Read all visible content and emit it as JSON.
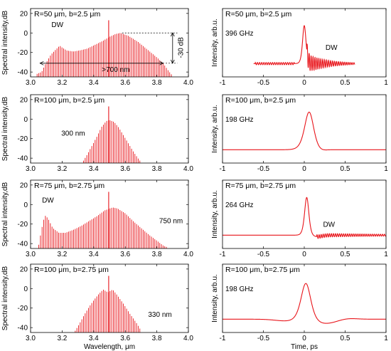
{
  "chart_data": [
    {
      "type": "bar",
      "panel": "left-1",
      "label": "R=50 μm, b=2.5 μm",
      "annotations": [
        "DW",
        "-30 dB",
        ">700 nm"
      ],
      "xlabel": "",
      "ylabel": "Spectral intensity,dB",
      "xlim": [
        3.0,
        4.0
      ],
      "ylim": [
        -45,
        25
      ],
      "xticks": [
        "3.0",
        "3.2",
        "3.4",
        "3.6",
        "3.8",
        "4.0"
      ],
      "yticks": [
        "20",
        "0",
        "-20",
        "-40"
      ],
      "pump": {
        "x": 3.495,
        "y": 13
      },
      "envelope": [
        [
          3.04,
          -42
        ],
        [
          3.07,
          -40
        ],
        [
          3.1,
          -30
        ],
        [
          3.13,
          -22
        ],
        [
          3.16,
          -17
        ],
        [
          3.185,
          -13
        ],
        [
          3.2,
          -15
        ],
        [
          3.23,
          -18
        ],
        [
          3.27,
          -19
        ],
        [
          3.31,
          -18
        ],
        [
          3.36,
          -16
        ],
        [
          3.41,
          -12
        ],
        [
          3.46,
          -8
        ],
        [
          3.5,
          -4
        ],
        [
          3.54,
          -1
        ],
        [
          3.57,
          0
        ],
        [
          3.62,
          -3
        ],
        [
          3.68,
          -9
        ],
        [
          3.74,
          -17
        ],
        [
          3.8,
          -25
        ],
        [
          3.84,
          -31
        ],
        [
          3.87,
          -38
        ],
        [
          3.9,
          -44
        ]
      ]
    },
    {
      "type": "bar",
      "panel": "left-2",
      "label": "R=100 μm, b=2.5 μm",
      "annotations": [
        "300 nm"
      ],
      "xlabel": "",
      "ylabel": "Spectral intensity,dB",
      "xlim": [
        3.0,
        4.0
      ],
      "ylim": [
        -45,
        25
      ],
      "xticks": [
        "3.0",
        "3.2",
        "3.4",
        "3.6",
        "3.8",
        "4.0"
      ],
      "yticks": [
        "20",
        "0",
        "-20",
        "-40"
      ],
      "pump": {
        "x": 3.495,
        "y": 13
      },
      "envelope": [
        [
          3.33,
          -44
        ],
        [
          3.36,
          -36
        ],
        [
          3.39,
          -27
        ],
        [
          3.42,
          -18
        ],
        [
          3.45,
          -8
        ],
        [
          3.48,
          -2
        ],
        [
          3.5,
          -1
        ],
        [
          3.53,
          -3
        ],
        [
          3.56,
          -9
        ],
        [
          3.59,
          -17
        ],
        [
          3.62,
          -25
        ],
        [
          3.65,
          -33
        ],
        [
          3.68,
          -40
        ],
        [
          3.7,
          -44
        ]
      ]
    },
    {
      "type": "bar",
      "panel": "left-3",
      "label": "R=75 μm, b=2.75 μm",
      "annotations": [
        "DW",
        "750 nm"
      ],
      "xlabel": "",
      "ylabel": "Spectral intensity,dB",
      "xlim": [
        3.0,
        4.0
      ],
      "ylim": [
        -45,
        25
      ],
      "xticks": [
        "3.0",
        "3.2",
        "3.4",
        "3.6",
        "3.8",
        "4.0"
      ],
      "yticks": [
        "20",
        "0",
        "-20",
        "-40"
      ],
      "pump": {
        "x": 3.495,
        "y": 13
      },
      "envelope": [
        [
          3.05,
          -43
        ],
        [
          3.07,
          -25
        ],
        [
          3.09,
          -11
        ],
        [
          3.11,
          -14
        ],
        [
          3.14,
          -24
        ],
        [
          3.18,
          -29
        ],
        [
          3.22,
          -29
        ],
        [
          3.27,
          -26
        ],
        [
          3.32,
          -22
        ],
        [
          3.37,
          -17
        ],
        [
          3.42,
          -12
        ],
        [
          3.47,
          -6
        ],
        [
          3.52,
          -3
        ],
        [
          3.55,
          -4
        ],
        [
          3.6,
          -9
        ],
        [
          3.65,
          -17
        ],
        [
          3.7,
          -24
        ],
        [
          3.75,
          -31
        ],
        [
          3.8,
          -37
        ],
        [
          3.84,
          -42
        ],
        [
          3.87,
          -44
        ]
      ]
    },
    {
      "type": "bar",
      "panel": "left-4",
      "label": "R=100 μm, b=2.75 μm",
      "annotations": [
        "330 nm"
      ],
      "xlabel": "Wavelength, μm",
      "ylabel": "Spectral intensity,dB",
      "xlim": [
        3.0,
        4.0
      ],
      "ylim": [
        -45,
        25
      ],
      "xticks": [
        "3.0",
        "3.2",
        "3.4",
        "3.6",
        "3.8",
        "4.0"
      ],
      "yticks": [
        "20",
        "0",
        "-20",
        "-40"
      ],
      "pump": {
        "x": 3.495,
        "y": 13
      },
      "envelope": [
        [
          3.28,
          -44
        ],
        [
          3.31,
          -36
        ],
        [
          3.34,
          -27
        ],
        [
          3.37,
          -19
        ],
        [
          3.4,
          -12
        ],
        [
          3.43,
          -6
        ],
        [
          3.46,
          -1
        ],
        [
          3.49,
          -4
        ],
        [
          3.52,
          -1
        ],
        [
          3.55,
          -7
        ],
        [
          3.59,
          -16
        ],
        [
          3.63,
          -26
        ],
        [
          3.67,
          -35
        ],
        [
          3.7,
          -43
        ]
      ]
    },
    {
      "type": "line",
      "panel": "right-1",
      "label": "R=50 μm, b=2.5 μm",
      "sublabel": "396 GHz",
      "annotations": [
        "DW"
      ],
      "xlabel": "",
      "ylabel": "Intensity, arb.u.",
      "xlim": [
        -1,
        1
      ],
      "xticks": [
        "-1",
        "-0.5",
        "0",
        "0.5",
        "1"
      ],
      "pulse": {
        "t0": 0.0,
        "width": 0.028,
        "peak": 1.0,
        "side_lobe": 0.0,
        "dw": true,
        "dw_amp": 0.25,
        "dw_freq": 42,
        "dw_start": 0.03,
        "dw_decay": 0.25,
        "trail_amp": 0.03,
        "trail_freq": 38,
        "trail_start": -0.6,
        "trail_end": -0.12
      }
    },
    {
      "type": "line",
      "panel": "right-2",
      "label": "R=100 μm, b=2.5 μm",
      "sublabel": "198 GHz",
      "annotations": [],
      "xlabel": "",
      "ylabel": "Intensity, arb.u.",
      "xlim": [
        -1,
        1
      ],
      "xticks": [
        "-1",
        "-0.5",
        "0",
        "0.5",
        "1"
      ],
      "pulse": {
        "t0": 0.06,
        "width": 0.075,
        "peak": 1.0,
        "side_lobe": -0.05,
        "dw": false
      }
    },
    {
      "type": "line",
      "panel": "right-3",
      "label": "R=75 μm, b=2.75 μm",
      "sublabel": "264 GHz",
      "annotations": [
        "DW"
      ],
      "xlabel": "",
      "ylabel": "Intensity, arb.u.",
      "xlim": [
        -1,
        1
      ],
      "xticks": [
        "-1",
        "-0.5",
        "0",
        "0.5",
        "1"
      ],
      "pulse": {
        "t0": 0.03,
        "width": 0.035,
        "peak": 1.0,
        "side_lobe": -0.04,
        "dw": true,
        "dw_amp": 0.05,
        "dw_freq": 40,
        "dw_start": 0.12,
        "dw_decay": 1.2,
        "trail_amp": 0,
        "trail_freq": 0,
        "trail_start": 0,
        "trail_end": 0
      }
    },
    {
      "type": "line",
      "panel": "right-4",
      "label": "R=100 μm, b=2.75 μm",
      "sublabel": "198 GHz",
      "annotations": [],
      "xlabel": "Time, ps",
      "ylabel": "Intensity, arb.u.",
      "xlim": [
        -1,
        1
      ],
      "xticks": [
        "-1",
        "-0.5",
        "0",
        "0.5",
        "1"
      ],
      "pulse": {
        "t0": 0.02,
        "width": 0.08,
        "peak": 1.0,
        "side_lobe": -0.12,
        "dw": false,
        "wide_lobe": true
      }
    }
  ]
}
